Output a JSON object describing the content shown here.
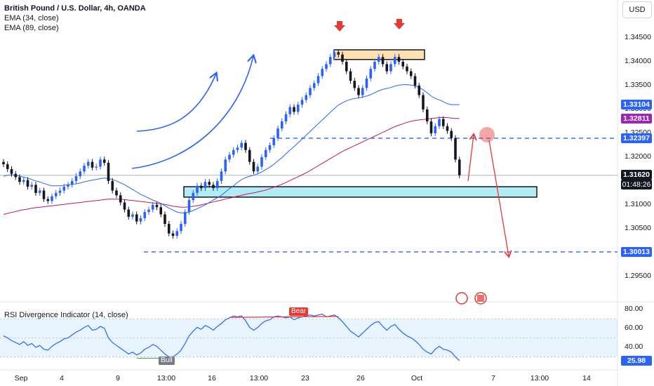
{
  "legend": {
    "title": "British Pound / U.S. Dollar, 4h, OANDA",
    "ema1": "EMA (34, close)",
    "ema2": "EMA (89, close)"
  },
  "currency_button": "USD",
  "rsi": {
    "label": "RSI Divergence Indicator (14, close)",
    "value_tag": "25.98",
    "bull_label": "Bull",
    "bear_label": "Bear",
    "ticks": [
      "80.00",
      "60.00",
      "40.00"
    ]
  },
  "price_axis": {
    "ticks": [
      "1.34500",
      "1.34000",
      "1.33500",
      "1.33000",
      "1.32500",
      "1.32000",
      "1.31500",
      "1.31000",
      "1.30500",
      "1.30000",
      "1.29500"
    ]
  },
  "price_tags": [
    {
      "text": "1.33104",
      "color": "#2962ff",
      "value": 1.33104
    },
    {
      "text": "1.32811",
      "color": "#9c27b0",
      "value": 1.32811
    },
    {
      "text": "1.32397",
      "color": "#2962ff",
      "value": 1.32397
    },
    {
      "text": "1.30013",
      "color": "#2962ff",
      "value": 1.30013
    }
  ],
  "last_price": {
    "text": "1.31620",
    "countdown": "01:48:26",
    "value": 1.3162
  },
  "time_axis": [
    "Sep",
    "4",
    "9",
    "13:00",
    "16",
    "13:00",
    "23",
    "26",
    "Oct",
    "7",
    "13:00",
    "14"
  ],
  "colors": {
    "up": "#2962ff",
    "down": "#131722",
    "ema34": "#2962ff",
    "ema89": "#c2185b",
    "rsi": "#2962ff",
    "arrow": "#e53935",
    "supply": "#ffe0b2",
    "demand": "#b2ebf2"
  },
  "chart_data": {
    "type": "candlestick",
    "title": "British Pound / U.S. Dollar, 4h, OANDA",
    "ylim": [
      1.2935,
      1.3475
    ],
    "levels": {
      "resistance_zone": [
        1.3415,
        1.3425
      ],
      "support_zone": [
        1.3125,
        1.3138
      ],
      "broken_level": 1.32397,
      "target": 1.30013
    },
    "close": [
      1.3185,
      1.3175,
      1.3165,
      1.3158,
      1.3148,
      1.3152,
      1.3138,
      1.3142,
      1.3125,
      1.313,
      1.3112,
      1.3108,
      1.3118,
      1.3125,
      1.313,
      1.3138,
      1.3142,
      1.315,
      1.316,
      1.317,
      1.3182,
      1.319,
      1.3178,
      1.318,
      1.3195,
      1.3188,
      1.315,
      1.313,
      1.312,
      1.3105,
      1.309,
      1.3075,
      1.308,
      1.3065,
      1.3072,
      1.3085,
      1.309,
      1.31,
      1.3095,
      1.308,
      1.306,
      1.304,
      1.3035,
      1.3045,
      1.306,
      1.3085,
      1.311,
      1.3125,
      1.314,
      1.3135,
      1.3148,
      1.3142,
      1.3135,
      1.315,
      1.317,
      1.3195,
      1.3205,
      1.3215,
      1.322,
      1.323,
      1.3215,
      1.319,
      1.317,
      1.318,
      1.32,
      1.3215,
      1.3225,
      1.324,
      1.326,
      1.3275,
      1.329,
      1.3305,
      1.3295,
      1.331,
      1.332,
      1.333,
      1.3345,
      1.3355,
      1.337,
      1.3385,
      1.3395,
      1.341,
      1.342,
      1.3415,
      1.34,
      1.338,
      1.336,
      1.3345,
      1.333,
      1.3345,
      1.3365,
      1.3385,
      1.34,
      1.341,
      1.3395,
      1.338,
      1.3395,
      1.341,
      1.34,
      1.339,
      1.338,
      1.337,
      1.335,
      1.333,
      1.33,
      1.3275,
      1.325,
      1.3265,
      1.328,
      1.3265,
      1.3255,
      1.324,
      1.3195,
      1.3162
    ],
    "ema34": [
      1.316,
      1.3162,
      1.3163,
      1.3162,
      1.316,
      1.3158,
      1.3156,
      1.3153,
      1.315,
      1.3148,
      1.3145,
      1.3142,
      1.314,
      1.314,
      1.314,
      1.3141,
      1.3142,
      1.3143,
      1.3144,
      1.3146,
      1.3148,
      1.315,
      1.3152,
      1.3153,
      1.3155,
      1.3156,
      1.3155,
      1.3153,
      1.315,
      1.3146,
      1.3142,
      1.3137,
      1.3132,
      1.3127,
      1.3122,
      1.3118,
      1.3114,
      1.311,
      1.3107,
      1.3103,
      1.3098,
      1.3093,
      1.3089,
      1.3085,
      1.3083,
      1.3083,
      1.3085,
      1.3088,
      1.3092,
      1.3096,
      1.31,
      1.3105,
      1.311,
      1.3115,
      1.312,
      1.3127,
      1.3134,
      1.314,
      1.3147,
      1.3153,
      1.3157,
      1.316,
      1.3162,
      1.3165,
      1.3169,
      1.3174,
      1.3179,
      1.3185,
      1.3192,
      1.3199,
      1.3207,
      1.3215,
      1.3222,
      1.323,
      1.3238,
      1.3246,
      1.3254,
      1.3262,
      1.327,
      1.3278,
      1.3286,
      1.3294,
      1.3302,
      1.3309,
      1.3314,
      1.3318,
      1.3321,
      1.3323,
      1.3324,
      1.3326,
      1.3328,
      1.3331,
      1.3335,
      1.3339,
      1.3342,
      1.3344,
      1.3346,
      1.3349,
      1.3351,
      1.3352,
      1.3352,
      1.3351,
      1.3349,
      1.3346,
      1.3341,
      1.3335,
      1.3328,
      1.3323,
      1.332,
      1.3316,
      1.3312,
      1.331,
      1.331,
      1.331
    ],
    "ema89": [
      1.308,
      1.3082,
      1.3084,
      1.3086,
      1.3088,
      1.309,
      1.3091,
      1.3093,
      1.3094,
      1.3095,
      1.3096,
      1.3097,
      1.3098,
      1.3099,
      1.31,
      1.3101,
      1.3102,
      1.3103,
      1.3104,
      1.3105,
      1.3106,
      1.3107,
      1.3108,
      1.3109,
      1.311,
      1.3111,
      1.3112,
      1.3112,
      1.3112,
      1.3112,
      1.3111,
      1.311,
      1.3109,
      1.3108,
      1.3107,
      1.3106,
      1.3105,
      1.3104,
      1.3103,
      1.3102,
      1.3101,
      1.3099,
      1.3097,
      1.3096,
      1.3095,
      1.3095,
      1.3096,
      1.3097,
      1.3098,
      1.31,
      1.3102,
      1.3104,
      1.3106,
      1.3108,
      1.311,
      1.3112,
      1.3114,
      1.3116,
      1.3118,
      1.312,
      1.3122,
      1.3124,
      1.3125,
      1.3127,
      1.3129,
      1.3131,
      1.3134,
      1.3137,
      1.314,
      1.3143,
      1.3147,
      1.3151,
      1.3155,
      1.3159,
      1.3163,
      1.3167,
      1.3172,
      1.3177,
      1.3182,
      1.3187,
      1.3192,
      1.3197,
      1.3202,
      1.3207,
      1.3212,
      1.3216,
      1.322,
      1.3224,
      1.3228,
      1.3232,
      1.3236,
      1.324,
      1.3244,
      1.3248,
      1.3252,
      1.3256,
      1.326,
      1.3264,
      1.3267,
      1.327,
      1.3273,
      1.3275,
      1.3277,
      1.3278,
      1.3279,
      1.328,
      1.3281,
      1.3282,
      1.3283,
      1.3283,
      1.3283,
      1.3282,
      1.3281,
      1.3281
    ],
    "rsi_ylim": [
      20,
      82
    ],
    "rsi_band": [
      30,
      70
    ],
    "rsi": [
      52,
      50,
      47,
      45,
      43,
      46,
      42,
      44,
      40,
      42,
      38,
      37,
      41,
      44,
      46,
      49,
      50,
      53,
      56,
      58,
      61,
      63,
      58,
      59,
      62,
      60,
      50,
      45,
      42,
      39,
      36,
      33,
      35,
      32,
      34,
      38,
      40,
      43,
      41,
      37,
      33,
      30,
      30,
      33,
      37,
      44,
      52,
      57,
      61,
      59,
      63,
      61,
      58,
      62,
      65,
      69,
      71,
      73,
      72,
      73,
      68,
      61,
      58,
      61,
      65,
      68,
      69,
      72,
      73,
      72,
      71,
      72,
      69,
      71,
      72,
      73,
      74,
      73,
      74,
      75,
      72,
      73,
      74,
      71,
      67,
      62,
      57,
      54,
      51,
      55,
      59,
      63,
      66,
      67,
      62,
      58,
      62,
      64,
      59,
      55,
      52,
      50,
      47,
      43,
      38,
      35,
      33,
      38,
      41,
      38,
      37,
      35,
      30,
      26
    ]
  }
}
